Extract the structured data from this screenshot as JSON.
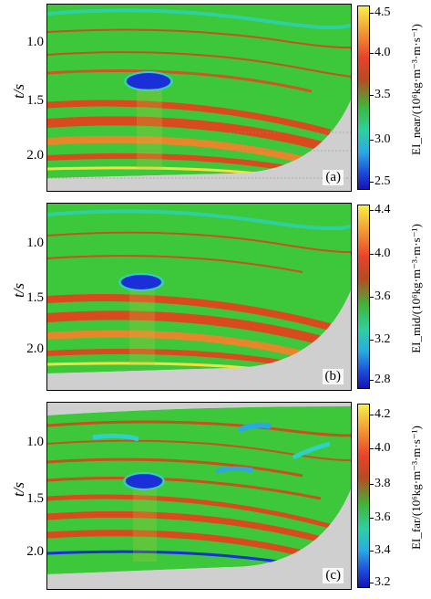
{
  "panels": [
    {
      "label": "(a)",
      "y_title": "t/s",
      "y_ticks": [
        "1.0",
        "1.5",
        "2.0"
      ],
      "colorbar_title": "EI_near/(10⁶kg·m⁻³·m·s⁻¹)",
      "colorbar_ticks": [
        "4.5",
        "4.0",
        "3.5",
        "3.0",
        "2.5"
      ]
    },
    {
      "label": "(b)",
      "y_title": "t/s",
      "y_ticks": [
        "1.0",
        "1.5",
        "2.0"
      ],
      "colorbar_title": "EI_mid/(10⁶kg·m⁻³·m·s⁻¹)",
      "colorbar_ticks": [
        "4.4",
        "4.0",
        "3.6",
        "3.2",
        "2.8"
      ]
    },
    {
      "label": "(c)",
      "y_title": "t/s",
      "y_ticks": [
        "1.0",
        "1.5",
        "2.0"
      ],
      "colorbar_title": "EI_far/(10⁶kg·m⁻³·m·s⁻¹)",
      "colorbar_ticks": [
        "4.2",
        "4.0",
        "3.8",
        "3.6",
        "3.4",
        "3.2"
      ]
    }
  ],
  "colors": {
    "background": "#cfcfcf",
    "green": "#3cc83a",
    "red": "#d94a1f",
    "orange": "#e8862c",
    "cyan": "#2fd0c8",
    "blue": "#1a2fd8"
  }
}
